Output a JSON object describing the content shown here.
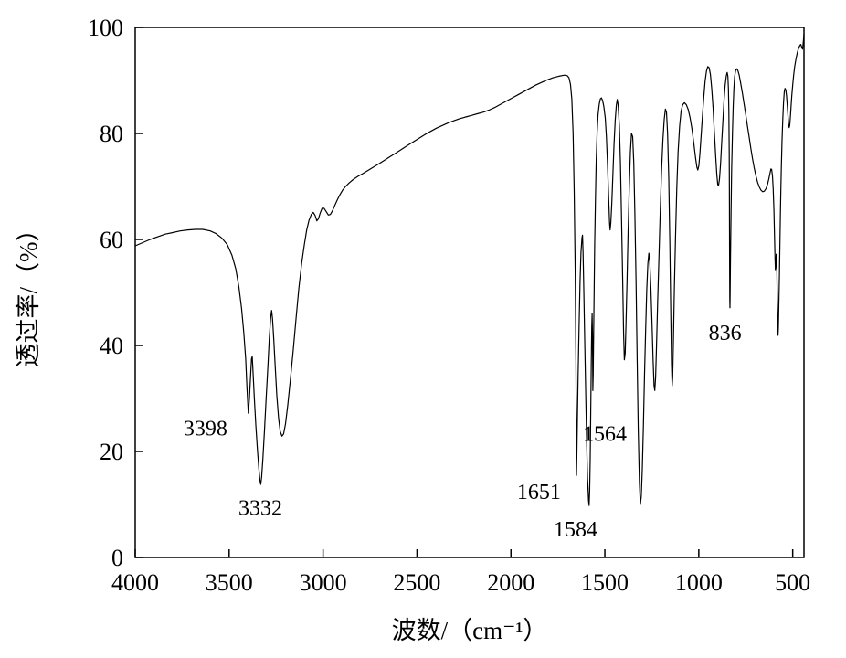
{
  "chart_data": {
    "type": "line",
    "title": "",
    "xlabel": "波数/（cm⁻¹）",
    "ylabel": "透过率/（%）",
    "xlim": [
      4000,
      440
    ],
    "ylim": [
      0,
      100
    ],
    "x_ticks": [
      4000,
      3500,
      3000,
      2500,
      2000,
      1500,
      1000,
      500
    ],
    "y_ticks": [
      0,
      20,
      40,
      60,
      80,
      100
    ],
    "grid": false,
    "legend": "none",
    "line_color": "#000000",
    "background": "#ffffff",
    "annotations": [
      {
        "text": "3398",
        "x": 3626,
        "y": 23
      },
      {
        "text": "3332",
        "x": 3334,
        "y": 8
      },
      {
        "text": "1651",
        "x": 1851,
        "y": 11
      },
      {
        "text": "1584",
        "x": 1656,
        "y": 4
      },
      {
        "text": "1564",
        "x": 1500,
        "y": 22
      },
      {
        "text": "836",
        "x": 860,
        "y": 41
      }
    ],
    "points": [
      [
        4000,
        58.8
      ],
      [
        3960,
        59.4
      ],
      [
        3920,
        60.0
      ],
      [
        3880,
        60.5
      ],
      [
        3840,
        61.0
      ],
      [
        3800,
        61.3
      ],
      [
        3760,
        61.6
      ],
      [
        3720,
        61.8
      ],
      [
        3680,
        61.9
      ],
      [
        3640,
        61.9
      ],
      [
        3600,
        61.6
      ],
      [
        3570,
        61.1
      ],
      [
        3540,
        60.3
      ],
      [
        3510,
        59.0
      ],
      [
        3485,
        57.0
      ],
      [
        3465,
        54.5
      ],
      [
        3448,
        51.0
      ],
      [
        3434,
        47.0
      ],
      [
        3422,
        42.5
      ],
      [
        3412,
        37.5
      ],
      [
        3405,
        32.0
      ],
      [
        3398,
        27.2
      ],
      [
        3392,
        30.0
      ],
      [
        3386,
        34.0
      ],
      [
        3381,
        37.5
      ],
      [
        3377,
        37.9
      ],
      [
        3372,
        34.5
      ],
      [
        3366,
        30.0
      ],
      [
        3358,
        25.0
      ],
      [
        3350,
        20.5
      ],
      [
        3342,
        16.8
      ],
      [
        3336,
        14.6
      ],
      [
        3332,
        13.8
      ],
      [
        3327,
        15.2
      ],
      [
        3320,
        18.8
      ],
      [
        3312,
        24.0
      ],
      [
        3303,
        30.0
      ],
      [
        3294,
        36.0
      ],
      [
        3286,
        41.5
      ],
      [
        3279,
        45.3
      ],
      [
        3274,
        46.6
      ],
      [
        3269,
        45.0
      ],
      [
        3262,
        41.0
      ],
      [
        3254,
        35.5
      ],
      [
        3246,
        30.5
      ],
      [
        3237,
        26.3
      ],
      [
        3228,
        23.8
      ],
      [
        3219,
        22.9
      ],
      [
        3210,
        23.3
      ],
      [
        3200,
        25.2
      ],
      [
        3188,
        28.8
      ],
      [
        3174,
        33.5
      ],
      [
        3159,
        39.0
      ],
      [
        3144,
        45.0
      ],
      [
        3129,
        50.8
      ],
      [
        3114,
        55.5
      ],
      [
        3100,
        59.0
      ],
      [
        3087,
        61.8
      ],
      [
        3075,
        63.6
      ],
      [
        3063,
        64.7
      ],
      [
        3052,
        65.1
      ],
      [
        3042,
        64.5
      ],
      [
        3033,
        63.5
      ],
      [
        3025,
        63.9
      ],
      [
        3015,
        65.0
      ],
      [
        3005,
        65.9
      ],
      [
        2995,
        65.9
      ],
      [
        2984,
        65.3
      ],
      [
        2972,
        64.6
      ],
      [
        2961,
        64.7
      ],
      [
        2950,
        65.4
      ],
      [
        2938,
        66.4
      ],
      [
        2925,
        67.4
      ],
      [
        2911,
        68.4
      ],
      [
        2896,
        69.3
      ],
      [
        2880,
        70.0
      ],
      [
        2860,
        70.7
      ],
      [
        2840,
        71.3
      ],
      [
        2815,
        71.9
      ],
      [
        2790,
        72.4
      ],
      [
        2762,
        73.0
      ],
      [
        2734,
        73.6
      ],
      [
        2706,
        74.2
      ],
      [
        2675,
        74.9
      ],
      [
        2644,
        75.6
      ],
      [
        2613,
        76.3
      ],
      [
        2582,
        77.0
      ],
      [
        2551,
        77.7
      ],
      [
        2520,
        78.4
      ],
      [
        2489,
        79.1
      ],
      [
        2458,
        79.8
      ],
      [
        2427,
        80.4
      ],
      [
        2396,
        81.0
      ],
      [
        2365,
        81.5
      ],
      [
        2334,
        82.0
      ],
      [
        2303,
        82.4
      ],
      [
        2272,
        82.8
      ],
      [
        2241,
        83.1
      ],
      [
        2210,
        83.4
      ],
      [
        2179,
        83.7
      ],
      [
        2148,
        84.0
      ],
      [
        2117,
        84.4
      ],
      [
        2086,
        84.9
      ],
      [
        2055,
        85.5
      ],
      [
        2024,
        86.1
      ],
      [
        1993,
        86.7
      ],
      [
        1962,
        87.3
      ],
      [
        1931,
        87.9
      ],
      [
        1900,
        88.5
      ],
      [
        1869,
        89.1
      ],
      [
        1838,
        89.6
      ],
      [
        1807,
        90.1
      ],
      [
        1776,
        90.5
      ],
      [
        1745,
        90.8
      ],
      [
        1714,
        91.0
      ],
      [
        1700,
        90.9
      ],
      [
        1691,
        90.5
      ],
      [
        1683,
        89.3
      ],
      [
        1676,
        86.5
      ],
      [
        1669,
        80.0
      ],
      [
        1663,
        69.0
      ],
      [
        1658,
        54.0
      ],
      [
        1654,
        37.0
      ],
      [
        1652,
        25.0
      ],
      [
        1651,
        15.5
      ],
      [
        1649,
        19.0
      ],
      [
        1646,
        26.0
      ],
      [
        1642,
        34.5
      ],
      [
        1637,
        44.0
      ],
      [
        1632,
        52.0
      ],
      [
        1627,
        57.5
      ],
      [
        1622,
        60.3
      ],
      [
        1619,
        60.8
      ],
      [
        1616,
        57.5
      ],
      [
        1612,
        50.5
      ],
      [
        1607,
        41.0
      ],
      [
        1602,
        31.0
      ],
      [
        1597,
        22.0
      ],
      [
        1592,
        15.0
      ],
      [
        1587,
        10.8
      ],
      [
        1584,
        9.8
      ],
      [
        1581,
        12.5
      ],
      [
        1578,
        18.5
      ],
      [
        1575,
        27.5
      ],
      [
        1572,
        37.0
      ],
      [
        1570,
        43.5
      ],
      [
        1568,
        46.0
      ],
      [
        1566,
        42.0
      ],
      [
        1564,
        31.5
      ],
      [
        1562,
        34.5
      ],
      [
        1560,
        41.0
      ],
      [
        1557,
        50.0
      ],
      [
        1554,
        59.0
      ],
      [
        1550,
        68.0
      ],
      [
        1546,
        75.0
      ],
      [
        1541,
        80.2
      ],
      [
        1536,
        83.5
      ],
      [
        1530,
        85.5
      ],
      [
        1524,
        86.5
      ],
      [
        1518,
        86.7
      ],
      [
        1512,
        86.2
      ],
      [
        1505,
        85.0
      ],
      [
        1498,
        82.9
      ],
      [
        1492,
        79.5
      ],
      [
        1486,
        74.5
      ],
      [
        1480,
        68.0
      ],
      [
        1475,
        63.2
      ],
      [
        1472,
        61.8
      ],
      [
        1468,
        63.2
      ],
      [
        1463,
        67.0
      ],
      [
        1457,
        72.5
      ],
      [
        1451,
        78.0
      ],
      [
        1445,
        82.5
      ],
      [
        1439,
        85.3
      ],
      [
        1434,
        86.4
      ],
      [
        1429,
        85.3
      ],
      [
        1423,
        81.5
      ],
      [
        1417,
        74.5
      ],
      [
        1411,
        64.0
      ],
      [
        1405,
        52.0
      ],
      [
        1400,
        42.0
      ],
      [
        1396,
        37.3
      ],
      [
        1392,
        38.5
      ],
      [
        1388,
        43.5
      ],
      [
        1382,
        52.0
      ],
      [
        1376,
        61.5
      ],
      [
        1370,
        70.0
      ],
      [
        1364,
        76.5
      ],
      [
        1358,
        80.0
      ],
      [
        1352,
        79.4
      ],
      [
        1346,
        74.5
      ],
      [
        1340,
        65.0
      ],
      [
        1334,
        52.0
      ],
      [
        1328,
        37.5
      ],
      [
        1322,
        24.0
      ],
      [
        1316,
        14.0
      ],
      [
        1311,
        10.0
      ],
      [
        1306,
        11.5
      ],
      [
        1301,
        16.5
      ],
      [
        1295,
        24.5
      ],
      [
        1289,
        34.0
      ],
      [
        1283,
        43.0
      ],
      [
        1277,
        50.5
      ],
      [
        1271,
        55.4
      ],
      [
        1266,
        57.4
      ],
      [
        1261,
        55.8
      ],
      [
        1255,
        51.0
      ],
      [
        1249,
        44.0
      ],
      [
        1243,
        37.0
      ],
      [
        1238,
        32.4
      ],
      [
        1234,
        31.5
      ],
      [
        1230,
        34.0
      ],
      [
        1225,
        40.0
      ],
      [
        1219,
        48.0
      ],
      [
        1212,
        57.0
      ],
      [
        1205,
        65.5
      ],
      [
        1198,
        73.0
      ],
      [
        1191,
        78.8
      ],
      [
        1184,
        82.6
      ],
      [
        1178,
        84.6
      ],
      [
        1172,
        84.0
      ],
      [
        1166,
        80.0
      ],
      [
        1160,
        71.5
      ],
      [
        1154,
        59.0
      ],
      [
        1149,
        46.0
      ],
      [
        1145,
        36.5
      ],
      [
        1142,
        32.4
      ],
      [
        1139,
        34.0
      ],
      [
        1135,
        41.0
      ],
      [
        1130,
        50.5
      ],
      [
        1124,
        60.5
      ],
      [
        1117,
        69.8
      ],
      [
        1110,
        76.5
      ],
      [
        1102,
        81.4
      ],
      [
        1094,
        84.2
      ],
      [
        1086,
        85.4
      ],
      [
        1076,
        85.8
      ],
      [
        1066,
        85.4
      ],
      [
        1056,
        84.5
      ],
      [
        1046,
        82.9
      ],
      [
        1036,
        80.7
      ],
      [
        1026,
        78.0
      ],
      [
        1017,
        75.3
      ],
      [
        1010,
        73.6
      ],
      [
        1005,
        73.1
      ],
      [
        1000,
        73.9
      ],
      [
        994,
        76.2
      ],
      [
        987,
        79.8
      ],
      [
        980,
        83.6
      ],
      [
        973,
        87.0
      ],
      [
        966,
        89.9
      ],
      [
        959,
        91.8
      ],
      [
        952,
        92.6
      ],
      [
        945,
        92.4
      ],
      [
        938,
        91.1
      ],
      [
        931,
        88.5
      ],
      [
        924,
        84.8
      ],
      [
        917,
        80.2
      ],
      [
        910,
        75.6
      ],
      [
        904,
        72.2
      ],
      [
        899,
        70.4
      ],
      [
        895,
        70.1
      ],
      [
        890,
        71.4
      ],
      [
        884,
        74.3
      ],
      [
        878,
        78.2
      ],
      [
        872,
        82.2
      ],
      [
        866,
        86.0
      ],
      [
        860,
        88.9
      ],
      [
        854,
        90.8
      ],
      [
        849,
        91.5
      ],
      [
        845,
        90.8
      ],
      [
        842,
        88.5
      ],
      [
        840,
        84.0
      ],
      [
        838,
        76.0
      ],
      [
        837,
        68.0
      ],
      [
        836,
        57.0
      ],
      [
        835,
        48.5
      ],
      [
        834,
        47.1
      ],
      [
        833,
        50.0
      ],
      [
        831,
        57.0
      ],
      [
        828,
        65.5
      ],
      [
        825,
        73.0
      ],
      [
        821,
        80.0
      ],
      [
        817,
        85.0
      ],
      [
        813,
        88.5
      ],
      [
        809,
        90.7
      ],
      [
        804,
        91.9
      ],
      [
        798,
        92.2
      ],
      [
        792,
        91.9
      ],
      [
        785,
        91.0
      ],
      [
        777,
        89.5
      ],
      [
        768,
        87.6
      ],
      [
        759,
        85.6
      ],
      [
        750,
        83.5
      ],
      [
        741,
        81.4
      ],
      [
        732,
        79.3
      ],
      [
        723,
        77.2
      ],
      [
        714,
        75.2
      ],
      [
        705,
        73.5
      ],
      [
        696,
        72.0
      ],
      [
        687,
        70.8
      ],
      [
        678,
        69.9
      ],
      [
        669,
        69.3
      ],
      [
        660,
        69.0
      ],
      [
        651,
        69.1
      ],
      [
        642,
        69.6
      ],
      [
        634,
        70.4
      ],
      [
        627,
        71.4
      ],
      [
        621,
        72.5
      ],
      [
        616,
        73.3
      ],
      [
        612,
        73.2
      ],
      [
        608,
        72.0
      ],
      [
        604,
        69.5
      ],
      [
        600,
        65.5
      ],
      [
        597,
        61.0
      ],
      [
        594,
        56.5
      ],
      [
        592,
        54.3
      ],
      [
        590,
        55.0
      ],
      [
        588,
        57.2
      ],
      [
        586,
        57.0
      ],
      [
        584,
        53.5
      ],
      [
        582,
        48.5
      ],
      [
        580,
        44.0
      ],
      [
        578,
        41.9
      ],
      [
        576,
        43.5
      ],
      [
        574,
        47.0
      ],
      [
        571,
        53.0
      ],
      [
        568,
        59.5
      ],
      [
        565,
        66.0
      ],
      [
        561,
        72.8
      ],
      [
        557,
        78.3
      ],
      [
        553,
        82.7
      ],
      [
        549,
        85.8
      ],
      [
        545,
        87.8
      ],
      [
        541,
        88.5
      ],
      [
        537,
        88.2
      ],
      [
        533,
        87.1
      ],
      [
        529,
        85.3
      ],
      [
        525,
        83.3
      ],
      [
        522,
        81.8
      ],
      [
        519,
        81.1
      ],
      [
        516,
        81.5
      ],
      [
        513,
        82.8
      ],
      [
        509,
        84.9
      ],
      [
        505,
        87.0
      ],
      [
        500,
        89.2
      ],
      [
        495,
        91.0
      ],
      [
        489,
        92.7
      ],
      [
        482,
        94.2
      ],
      [
        475,
        95.3
      ],
      [
        468,
        96.1
      ],
      [
        462,
        96.6
      ],
      [
        457,
        96.8
      ],
      [
        452,
        96.3
      ],
      [
        448,
        95.9
      ],
      [
        445,
        96.8
      ],
      [
        442,
        97.9
      ],
      [
        440,
        98.8
      ]
    ]
  }
}
